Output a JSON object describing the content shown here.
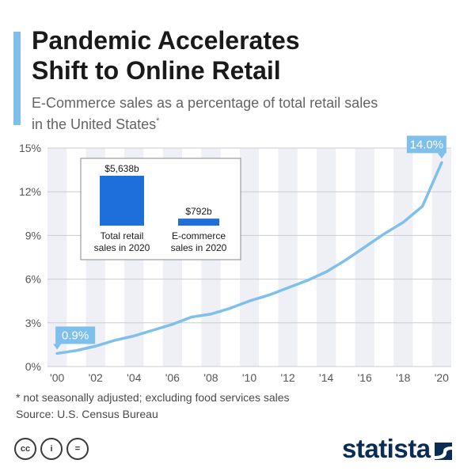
{
  "header": {
    "title": "Pandemic Accelerates\nShift to Online Retail",
    "subtitle": "E-Commerce sales as a percentage of total retail sales\nin the United States",
    "subtitle_mark": "*"
  },
  "chart_data": {
    "type": "line",
    "x": [
      2000,
      2001,
      2002,
      2003,
      2004,
      2005,
      2006,
      2007,
      2008,
      2009,
      2010,
      2011,
      2012,
      2013,
      2014,
      2015,
      2016,
      2017,
      2018,
      2019,
      2020
    ],
    "values": [
      0.9,
      1.1,
      1.4,
      1.8,
      2.1,
      2.5,
      2.9,
      3.4,
      3.6,
      4.0,
      4.5,
      4.9,
      5.4,
      5.9,
      6.5,
      7.3,
      8.2,
      9.1,
      9.9,
      11.0,
      14.0
    ],
    "xlim": [
      1999.5,
      2020.5
    ],
    "ylim": [
      0,
      15
    ],
    "yticks": [
      "0%",
      "3%",
      "6%",
      "9%",
      "12%",
      "15%"
    ],
    "ytick_values": [
      0,
      3,
      6,
      9,
      12,
      15
    ],
    "xticks": [
      "'00",
      "'02",
      "'04",
      "'06",
      "'08",
      "'10",
      "'12",
      "'14",
      "'16",
      "'18",
      "'20"
    ],
    "xtick_values": [
      2000,
      2002,
      2004,
      2006,
      2008,
      2010,
      2012,
      2014,
      2016,
      2018,
      2020
    ],
    "callouts": [
      {
        "x": 2000,
        "y": 0.9,
        "label": "0.9%"
      },
      {
        "x": 2020,
        "y": 14.0,
        "label": "14.0%"
      }
    ],
    "line_color": "#7fbfeb",
    "stripe_color": "#eef0f6",
    "inset": {
      "type": "bar",
      "categories": [
        "Total retail sales in 2020",
        "E-commerce sales in 2020"
      ],
      "category_lines": [
        [
          "Total retail",
          "sales in 2020"
        ],
        [
          "E-commerce",
          "sales in 2020"
        ]
      ],
      "values": [
        5638,
        792
      ],
      "value_labels": [
        "$5,638b",
        "$792b"
      ],
      "bar_color": "#1f6fdb"
    }
  },
  "footer": {
    "footnote": "* not seasonally adjusted; excluding food services sales",
    "source": "Source: U.S. Census Bureau",
    "license_icons": [
      "cc",
      "i",
      "="
    ],
    "brand": "statista"
  },
  "colors": {
    "accent": "#7fbfeb",
    "brand": "#0b2c55",
    "bar": "#1f6fdb"
  }
}
